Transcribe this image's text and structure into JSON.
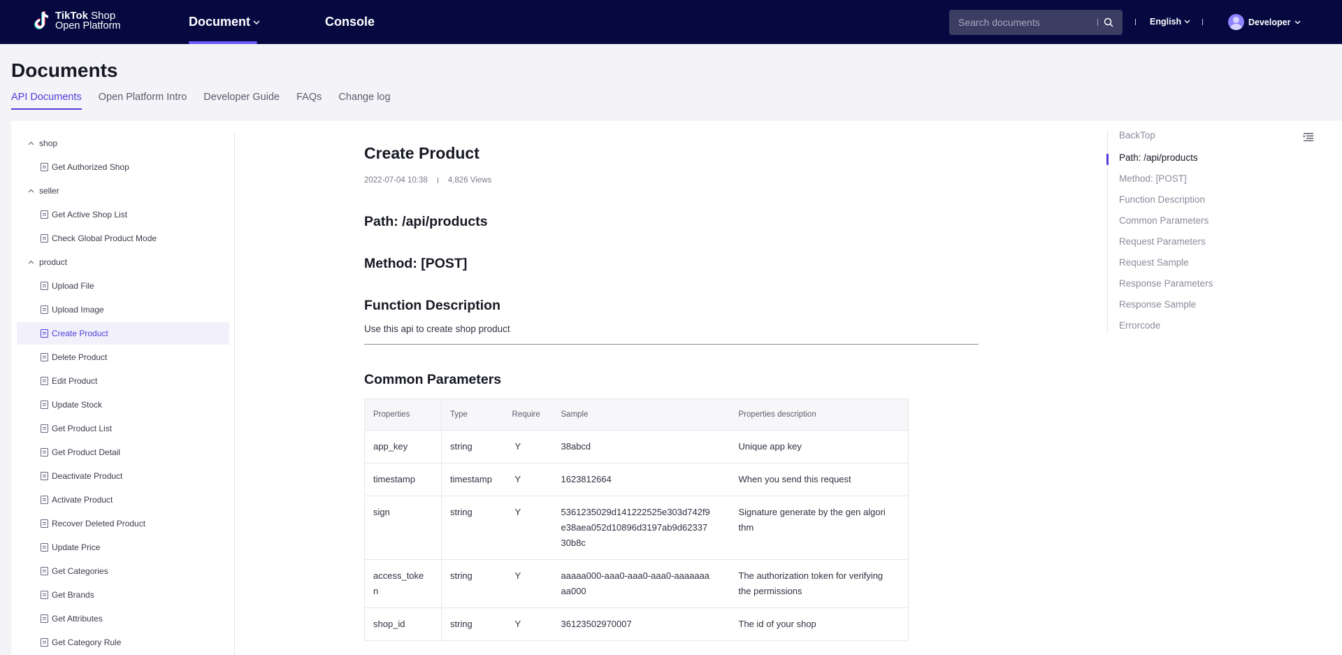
{
  "header": {
    "logo_line1_bold": "TikTok",
    "logo_line1_rest": " Shop",
    "logo_line2": "Open Platform",
    "nav_document": "Document",
    "nav_console": "Console",
    "search_placeholder": "Search documents",
    "language": "English",
    "user": "Developer"
  },
  "page": {
    "title": "Documents",
    "tabs": [
      "API Documents",
      "Open Platform Intro",
      "Developer Guide",
      "FAQs",
      "Change log"
    ]
  },
  "sidebar": {
    "groups": [
      "shop",
      "seller",
      "product"
    ],
    "items": [
      "Get Authorized Shop",
      "Get Active Shop List",
      "Check Global Product Mode",
      "Upload File",
      "Upload Image",
      "Create Product",
      "Delete Product",
      "Edit Product",
      "Update Stock",
      "Get Product List",
      "Get Product Detail",
      "Deactivate Product",
      "Activate Product",
      "Recover Deleted Product",
      "Update Price",
      "Get Categories",
      "Get Brands",
      "Get Attributes",
      "Get Category Rule"
    ],
    "active_item": "Create Product"
  },
  "doc": {
    "title": "Create Product",
    "date": "2022-07-04 10:38",
    "views": "4,826 Views",
    "path": "Path: /api/products",
    "method": "Method: [POST]",
    "function_heading": "Function Description",
    "function_text": "Use this api to create shop product",
    "common_heading": "Common Parameters",
    "table": {
      "headers": [
        "Properties",
        "Type",
        "Require",
        "Sample",
        "Properties description"
      ],
      "rows": [
        [
          "app_key",
          "string",
          "Y",
          "38abcd",
          "Unique app key"
        ],
        [
          "timestamp",
          "timestamp",
          "Y",
          "1623812664",
          "When you send this request"
        ],
        [
          "sign",
          "string",
          "Y",
          "5361235029d141222525e303d742f9\ne38aea052d10896d3197ab9d62337\n30b8c",
          "Signature generate by the gen algori\nthm"
        ],
        [
          "access_toke\nn",
          "string",
          "Y",
          "aaaaa000-aaa0-aaa0-aaa0-aaaaaaa\naa000",
          "The authorization token for verifying\nthe permissions"
        ],
        [
          "shop_id",
          "string",
          "Y",
          "36123502970007",
          "The id of your shop"
        ]
      ]
    }
  },
  "toc": {
    "items": [
      "BackTop",
      "Path: /api/products",
      "Method: [POST]",
      "Function Description",
      "Common Parameters",
      "Request Parameters",
      "Request Sample",
      "Response Parameters",
      "Response Sample",
      "Errorcode"
    ],
    "active": "Path: /api/products"
  },
  "colors": {
    "nav_bg": "#050940",
    "accent": "#4f3ed8"
  }
}
